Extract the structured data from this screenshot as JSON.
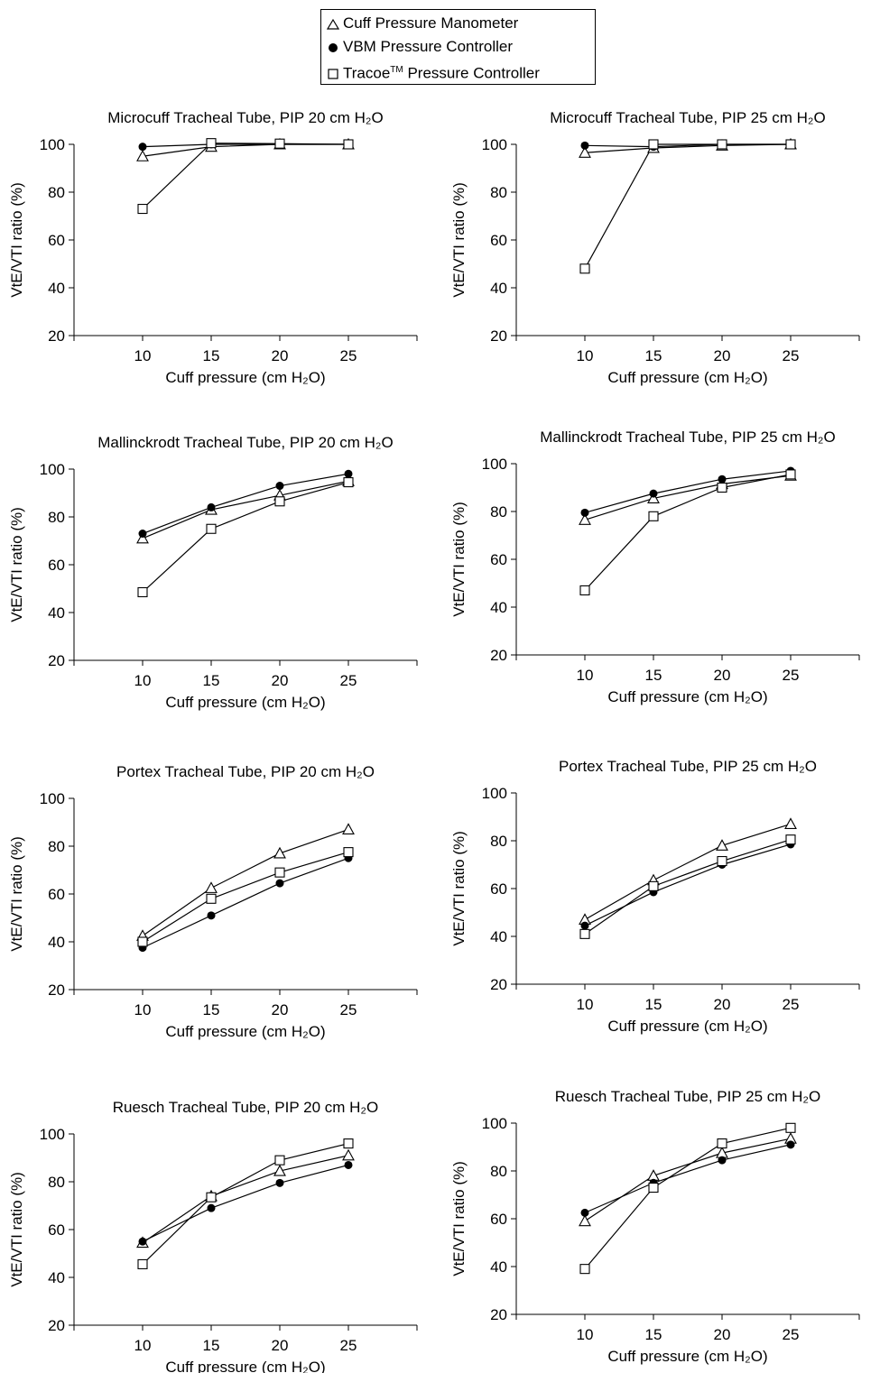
{
  "legend": {
    "items": [
      {
        "label": "Cuff Pressure Manometer",
        "marker": "triangle-open"
      },
      {
        "label": "VBM Pressure Controller",
        "marker": "circle-filled"
      },
      {
        "label": "Tracoe",
        "sup": "TM",
        "suffix": " Pressure Controller",
        "marker": "square-open"
      }
    ]
  },
  "chart_data": [
    {
      "type": "line",
      "title": "Microcuff Tracheal Tube, PIP 20 cm H₂O",
      "xlabel": "Cuff pressure (cm H₂O)",
      "ylabel": "VtE/VTI ratio (%)",
      "x": [
        10,
        15,
        20,
        25
      ],
      "xlim": [
        5,
        30
      ],
      "ylim": [
        20,
        100
      ],
      "xticks": [
        10,
        15,
        20,
        25
      ],
      "yticks": [
        20,
        40,
        60,
        80,
        100
      ],
      "series": [
        {
          "name": "Cuff Pressure Manometer",
          "values": [
            95,
            99,
            100,
            100
          ]
        },
        {
          "name": "VBM Pressure Controller",
          "values": [
            99,
            100,
            100,
            100
          ]
        },
        {
          "name": "TracoeTM Pressure Controller",
          "values": [
            73,
            100.5,
            100.3,
            100
          ]
        }
      ]
    },
    {
      "type": "line",
      "title": "Microcuff Tracheal Tube, PIP 25 cm H₂O",
      "xlabel": "Cuff pressure (cm H₂O)",
      "ylabel": "VtE/VTI ratio (%)",
      "x": [
        10,
        15,
        20,
        25
      ],
      "xlim": [
        5,
        30
      ],
      "ylim": [
        20,
        100
      ],
      "xticks": [
        10,
        15,
        20,
        25
      ],
      "yticks": [
        20,
        40,
        60,
        80,
        100
      ],
      "series": [
        {
          "name": "Cuff Pressure Manometer",
          "values": [
            96.5,
            98.5,
            99.5,
            100
          ]
        },
        {
          "name": "VBM Pressure Controller",
          "values": [
            99.5,
            99,
            100,
            100
          ]
        },
        {
          "name": "TracoeTM Pressure Controller",
          "values": [
            48,
            100,
            100,
            100
          ]
        }
      ]
    },
    {
      "type": "line",
      "title": "Mallinckrodt Tracheal Tube, PIP 20 cm H₂O",
      "xlabel": "Cuff pressure (cm H₂O)",
      "ylabel": "VtE/VTI ratio (%)",
      "x": [
        10,
        15,
        20,
        25
      ],
      "xlim": [
        5,
        30
      ],
      "ylim": [
        20,
        100
      ],
      "xticks": [
        10,
        15,
        20,
        25
      ],
      "yticks": [
        20,
        40,
        60,
        80,
        100
      ],
      "series": [
        {
          "name": "Cuff Pressure Manometer",
          "values": [
            71,
            83,
            89,
            95
          ]
        },
        {
          "name": "VBM Pressure Controller",
          "values": [
            73,
            84,
            93,
            98
          ]
        },
        {
          "name": "TracoeTM Pressure Controller",
          "values": [
            48.5,
            75,
            86.5,
            94.5
          ]
        }
      ]
    },
    {
      "type": "line",
      "title": "Mallinckrodt Tracheal Tube, PIP 25 cm H₂O",
      "xlabel": "Cuff pressure (cm H₂O)",
      "ylabel": "VtE/VTI ratio (%)",
      "x": [
        10,
        15,
        20,
        25
      ],
      "xlim": [
        5,
        30
      ],
      "ylim": [
        20,
        100
      ],
      "xticks": [
        10,
        15,
        20,
        25
      ],
      "yticks": [
        20,
        40,
        60,
        80,
        100
      ],
      "series": [
        {
          "name": "Cuff Pressure Manometer",
          "values": [
            76.5,
            85.5,
            91.5,
            95
          ]
        },
        {
          "name": "VBM Pressure Controller",
          "values": [
            79.5,
            87.5,
            93.5,
            97
          ]
        },
        {
          "name": "TracoeTM Pressure Controller",
          "values": [
            47,
            78,
            90,
            95.5
          ]
        }
      ]
    },
    {
      "type": "line",
      "title": "Portex Tracheal Tube, PIP 20 cm H₂O",
      "xlabel": "Cuff pressure (cm H₂O)",
      "ylabel": "VtE/VTI ratio (%)",
      "x": [
        10,
        15,
        20,
        25
      ],
      "xlim": [
        5,
        30
      ],
      "ylim": [
        20,
        100
      ],
      "xticks": [
        10,
        15,
        20,
        25
      ],
      "yticks": [
        20,
        40,
        60,
        80,
        100
      ],
      "series": [
        {
          "name": "Cuff Pressure Manometer",
          "values": [
            42.5,
            62.5,
            77,
            87
          ]
        },
        {
          "name": "VBM Pressure Controller",
          "values": [
            37.5,
            51,
            64.5,
            75
          ]
        },
        {
          "name": "TracoeTM Pressure Controller",
          "values": [
            40,
            58,
            69,
            77.5
          ]
        }
      ]
    },
    {
      "type": "line",
      "title": "Portex Tracheal Tube, PIP 25 cm H₂O",
      "xlabel": "Cuff pressure (cm H₂O)",
      "ylabel": "VtE/VTI ratio (%)",
      "x": [
        10,
        15,
        20,
        25
      ],
      "xlim": [
        5,
        30
      ],
      "ylim": [
        20,
        100
      ],
      "xticks": [
        10,
        15,
        20,
        25
      ],
      "yticks": [
        20,
        40,
        60,
        80,
        100
      ],
      "series": [
        {
          "name": "Cuff Pressure Manometer",
          "values": [
            47,
            63.5,
            78,
            87
          ]
        },
        {
          "name": "VBM Pressure Controller",
          "values": [
            44.5,
            58.5,
            70,
            78.5
          ]
        },
        {
          "name": "TracoeTM Pressure Controller",
          "values": [
            41,
            61,
            71.5,
            80.5
          ]
        }
      ]
    },
    {
      "type": "line",
      "title": "Ruesch Tracheal Tube, PIP 20 cm H₂O",
      "xlabel": "Cuff pressure (cm H₂O)",
      "ylabel": "VtE/VTI ratio (%)",
      "x": [
        10,
        15,
        20,
        25
      ],
      "xlim": [
        5,
        30
      ],
      "ylim": [
        20,
        100
      ],
      "xticks": [
        10,
        15,
        20,
        25
      ],
      "yticks": [
        20,
        40,
        60,
        80,
        100
      ],
      "series": [
        {
          "name": "Cuff Pressure Manometer",
          "values": [
            54.5,
            74,
            84.5,
            91
          ]
        },
        {
          "name": "VBM Pressure Controller",
          "values": [
            55,
            69,
            79.5,
            87
          ]
        },
        {
          "name": "TracoeTM Pressure Controller",
          "values": [
            45.5,
            73.5,
            89,
            96
          ]
        }
      ]
    },
    {
      "type": "line",
      "title": "Ruesch Tracheal Tube, PIP 25 cm H₂O",
      "xlabel": "Cuff pressure (cm H₂O)",
      "ylabel": "VtE/VTI ratio (%)",
      "x": [
        10,
        15,
        20,
        25
      ],
      "xlim": [
        5,
        30
      ],
      "ylim": [
        20,
        100
      ],
      "xticks": [
        10,
        15,
        20,
        25
      ],
      "yticks": [
        20,
        40,
        60,
        80,
        100
      ],
      "series": [
        {
          "name": "Cuff Pressure Manometer",
          "values": [
            59,
            78,
            87.5,
            93.5
          ]
        },
        {
          "name": "VBM Pressure Controller",
          "values": [
            62.5,
            75,
            84.5,
            91
          ]
        },
        {
          "name": "TracoeTM Pressure Controller",
          "values": [
            39,
            73,
            91.5,
            98
          ]
        }
      ]
    }
  ]
}
